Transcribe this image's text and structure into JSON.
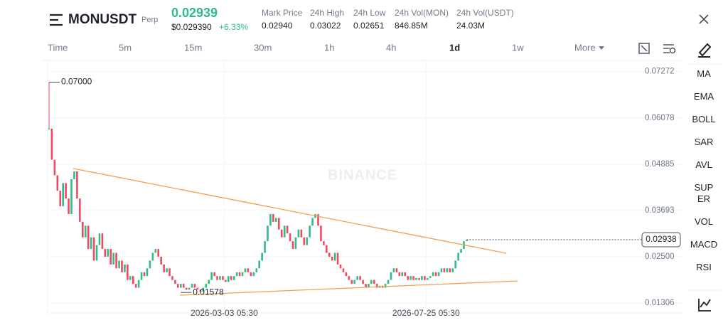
{
  "header": {
    "symbol": "MONUSDT",
    "contract": "Perp",
    "price": "0.02939",
    "price_usd": "$0.029390",
    "change": "+6.33%"
  },
  "stats": [
    {
      "label": "Mark Price",
      "value": "0.02940"
    },
    {
      "label": "24h High",
      "value": "0.03022"
    },
    {
      "label": "24h Low",
      "value": "0.02651"
    },
    {
      "label": "24h Vol(MON)",
      "value": "846.85M"
    },
    {
      "label": "24h Vol(USDT)",
      "value": "24.03M"
    }
  ],
  "timeframes": [
    "Time",
    "5m",
    "15m",
    "30m",
    "1h",
    "4h",
    "1d",
    "1w"
  ],
  "active_timeframe": "1d",
  "more": "More",
  "indicators": [
    "MA",
    "EMA",
    "BOLL",
    "SAR",
    "AVL",
    "SUPER",
    "VOL",
    "MACD",
    "RSI"
  ],
  "watermark": "BINANCE",
  "chart_data": {
    "type": "candlestick",
    "up_color": "#2ebd85",
    "down_color": "#f6465d",
    "values": [
      0.058,
      0.05,
      0.046,
      0.042,
      0.038,
      0.044,
      0.04,
      0.036,
      0.045,
      0.047,
      0.04,
      0.034,
      0.03,
      0.033,
      0.027,
      0.03,
      0.024,
      0.028,
      0.031,
      0.027,
      0.025,
      0.027,
      0.023,
      0.026,
      0.022,
      0.024,
      0.021,
      0.023,
      0.019,
      0.02,
      0.018,
      0.017,
      0.019,
      0.021,
      0.02,
      0.022,
      0.024,
      0.026,
      0.027,
      0.025,
      0.023,
      0.021,
      0.022,
      0.02,
      0.019,
      0.018,
      0.017,
      0.018,
      0.017,
      0.0165,
      0.017,
      0.018,
      0.017,
      0.0165,
      0.016,
      0.017,
      0.018,
      0.019,
      0.021,
      0.02,
      0.019,
      0.02,
      0.019,
      0.0185,
      0.02,
      0.019,
      0.02,
      0.021,
      0.02,
      0.021,
      0.022,
      0.021,
      0.02,
      0.021,
      0.022,
      0.024,
      0.026,
      0.029,
      0.033,
      0.036,
      0.034,
      0.035,
      0.032,
      0.03,
      0.033,
      0.031,
      0.029,
      0.027,
      0.03,
      0.032,
      0.03,
      0.028,
      0.03,
      0.033,
      0.035,
      0.036,
      0.033,
      0.029,
      0.028,
      0.026,
      0.025,
      0.024,
      0.026,
      0.023,
      0.022,
      0.021,
      0.02,
      0.019,
      0.018,
      0.019,
      0.02,
      0.019,
      0.018,
      0.017,
      0.018,
      0.019,
      0.018,
      0.017,
      0.0175,
      0.017,
      0.018,
      0.019,
      0.021,
      0.022,
      0.021,
      0.02,
      0.021,
      0.02,
      0.019,
      0.02,
      0.019,
      0.0195,
      0.019,
      0.02,
      0.019,
      0.0195,
      0.02,
      0.021,
      0.02,
      0.021,
      0.022,
      0.021,
      0.022,
      0.021,
      0.022,
      0.024,
      0.026,
      0.027,
      0.029,
      0.02938
    ],
    "xlim": [
      0,
      210
    ],
    "xticks": [
      {
        "value": 63,
        "label": "2026-03-03 05:30"
      },
      {
        "value": 135,
        "label": "2026-07-25 05:30"
      }
    ],
    "ylim": [
      0.0105,
      0.0756
    ],
    "yticks": [
      0.07272,
      0.06078,
      0.04885,
      0.03693,
      {
        "value": 0.025,
        "label": "0.02500"
      },
      0.01306
    ],
    "grid": true,
    "annotations": [
      {
        "label": "0.07000",
        "value": 0.07,
        "x": 0
      },
      {
        "label": "0.01578",
        "value": 0.01578,
        "x": 47
      }
    ],
    "trendlines": [
      {
        "color": "#f0a050",
        "points": [
          [
            9.1,
            0.04775
          ],
          [
            163.6,
            0.02591
          ]
        ]
      },
      {
        "color": "#f0a050",
        "points": [
          [
            47.2,
            0.01508
          ],
          [
            167.6,
            0.01875
          ]
        ]
      }
    ]
  }
}
